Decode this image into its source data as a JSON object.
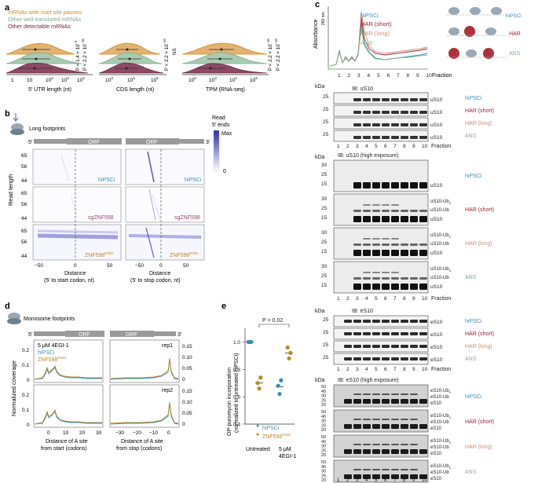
{
  "panels": {
    "a": "a",
    "b": "b",
    "c": "c",
    "d": "d",
    "e": "e"
  },
  "colors": {
    "pause": "#d98a2b",
    "well": "#7eaf8f",
    "other": "#6e2a44",
    "hiPSCi": "#3a8fb0",
    "har_short": "#9b2232",
    "har_long": "#c8927a",
    "ans": "#7fb889",
    "znf": "#b98a2a",
    "blot_dark": "#1a1a1a",
    "heat": "#3b3bb0"
  },
  "panel_a": {
    "legend": [
      "mRNAs with start site pauses",
      "Other well-translated mRNAs",
      "Other detectable mRNAs"
    ],
    "p_utr": [
      "P = 1.4 × 10",
      "−3",
      "P < 2.2 × 10",
      "−16"
    ],
    "p_cds": [
      "P < 2.2 × 10",
      "−16",
      "NS"
    ],
    "p_tpm_1": [
      "P < 2.2 × 10",
      "−16"
    ],
    "p_tpm_2": [
      "P < 2.2 × 10",
      "−16"
    ],
    "x_utr": "5′ UTR length (nt)",
    "x_cds": "CDS length (nt)",
    "x_tpm": "TPM (RNA-seq)",
    "ticks_utr": [
      "1",
      "10",
      "10",
      "2",
      "10",
      "3",
      "10",
      "4"
    ],
    "ticks_cds": [
      "10",
      "3",
      "10",
      "4",
      "10",
      "5"
    ],
    "ticks_tpm": [
      "10",
      "2",
      "10",
      "3",
      "10",
      "4",
      "10",
      "5"
    ]
  },
  "panel_b": {
    "long_footprints": "Long footprints",
    "five": "5′",
    "three": "3′",
    "orf": "ORF",
    "read_length": "Read length",
    "yticks": [
      "65",
      "56",
      "44"
    ],
    "xticks": [
      "−50",
      "0",
      "50"
    ],
    "rows": [
      "hiPSCi",
      "sgZNF598",
      "ZNF598"
    ],
    "ring": "RING",
    "x_start": [
      "Distance",
      "(5′ to start codon, nt)"
    ],
    "x_stop": [
      "Distance",
      "(5′ to stop codon, nt)"
    ],
    "scale_title": [
      "Read",
      "5′ ends"
    ],
    "scale_max": "Max",
    "scale_min": "0"
  },
  "panel_c": {
    "absorbance": "Absorbance",
    "absorbance_sub": "260 nm",
    "fraction": "Fraction",
    "fractions": [
      "1",
      "2",
      "3",
      "4",
      "5",
      "6",
      "7",
      "8",
      "9",
      "10"
    ],
    "conditions": [
      "hiPSCi",
      "HAR (short)",
      "HAR (long)",
      "ANS"
    ],
    "kda": "kDa",
    "ib_us10": "IB: uS10",
    "ib_us10_high": "IB: uS10 (high exposure)",
    "ib_es10": "IB: eS10",
    "ib_es10_high": "IB: eS10 (high exposure)",
    "ladder_25": "25",
    "ladder_high": [
      "30",
      "25",
      "15"
    ],
    "ladder_es10_high": [
      "50",
      "40",
      "30",
      "25",
      "20"
    ],
    "band_us10": "uS10",
    "band_es10": "eS10",
    "ub_us10_1": "uS10-Ub",
    "ub_us10_2": "uS10-Ub",
    "ub_es10_1": "eS10-Ub",
    "ub_es10_2": "eS10-Ub",
    "sub2": "2",
    "sub3": "3"
  },
  "panel_d": {
    "title": "Monosome footprints",
    "five": "5′",
    "three": "3′",
    "orf": "ORF",
    "legend_drug": "5 μM 4EGI-1",
    "legend_hi": "hiPSCi",
    "legend_znf": "ZNF598",
    "ring": "RING",
    "rep1": "rep1",
    "rep2": "rep2",
    "ylabel": "Normalized coverage",
    "yticks_left": [
      "0.2",
      "0.1",
      "0"
    ],
    "yticks_right": [
      "0.15",
      "0.10",
      "0.05",
      "0"
    ],
    "xticks_start": [
      "0",
      "10",
      "20",
      "30"
    ],
    "xticks_stop": [
      "−30",
      "−20",
      "−10",
      "0"
    ],
    "x_start": [
      "Distance of A site",
      "from start (codons)"
    ],
    "x_stop": [
      "Distance of A site",
      "from stop (codons)"
    ]
  },
  "chart_data": [
    {
      "type": "scatter",
      "title": "",
      "ylabel": "OP-puromycin incorporation (normalized to untreated hiPSCi)",
      "ylim": [
        0.4,
        1.1
      ],
      "yticks": [
        "1.0",
        "0.8",
        "0.6",
        "0.4"
      ],
      "categories": [
        "Untreated",
        "5 μM 4EGI-1"
      ],
      "series": [
        {
          "name": "hiPSCi",
          "points": [
            [
              0,
              1.0
            ],
            [
              0,
              1.0
            ],
            [
              0,
              1.0
            ],
            [
              1,
              0.68
            ],
            [
              1,
              0.62
            ],
            [
              1,
              0.72
            ]
          ]
        },
        {
          "name": "ZNF598",
          "points": [
            [
              0,
              0.7
            ],
            [
              0,
              0.66
            ],
            [
              0,
              0.74
            ],
            [
              1,
              0.96
            ],
            [
              1,
              0.88
            ],
            [
              1,
              0.92
            ]
          ]
        }
      ],
      "annotation": "P = 0.02",
      "legend_ring": "RING",
      "ylabel_lines": [
        "OP-puromycin incorporation",
        "(normalized to untreated hiPSCi)"
      ],
      "xlabel_lines": [
        "Untreated",
        "5 μM",
        "4EGI-1"
      ]
    }
  ]
}
